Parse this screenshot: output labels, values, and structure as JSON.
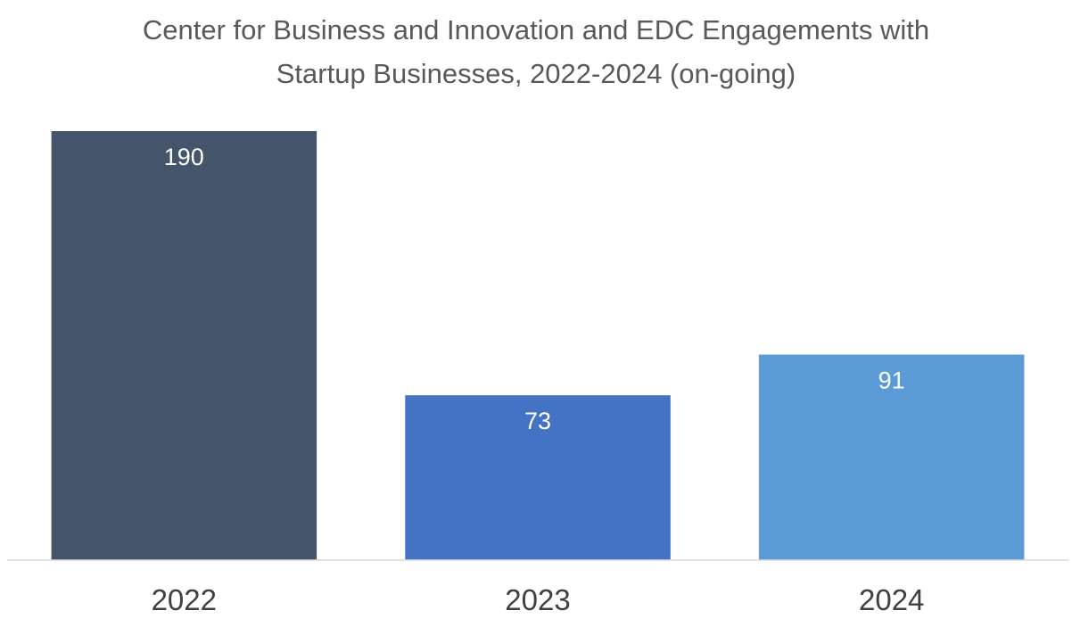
{
  "chart_data": {
    "type": "bar",
    "title": "Center for Business and Innovation and EDC Engagements with Startup Businesses, 2022-2024 (on-going)",
    "title_lines": [
      "Center for Business and Innovation and EDC Engagements with",
      "Startup Businesses, 2022-2024 (on-going)"
    ],
    "categories": [
      "2022",
      "2023",
      "2024"
    ],
    "values": [
      190,
      73,
      91
    ],
    "data_labels": [
      "190",
      "73",
      "91"
    ],
    "bar_colors": [
      "#44546A",
      "#4472C4",
      "#5B9BD5"
    ],
    "xlabel": "",
    "ylabel": "",
    "ylim": [
      0,
      190
    ],
    "grid": false,
    "legend": "none",
    "axis_color": "#D9D9D9",
    "label_color": "#FFFFFF"
  }
}
